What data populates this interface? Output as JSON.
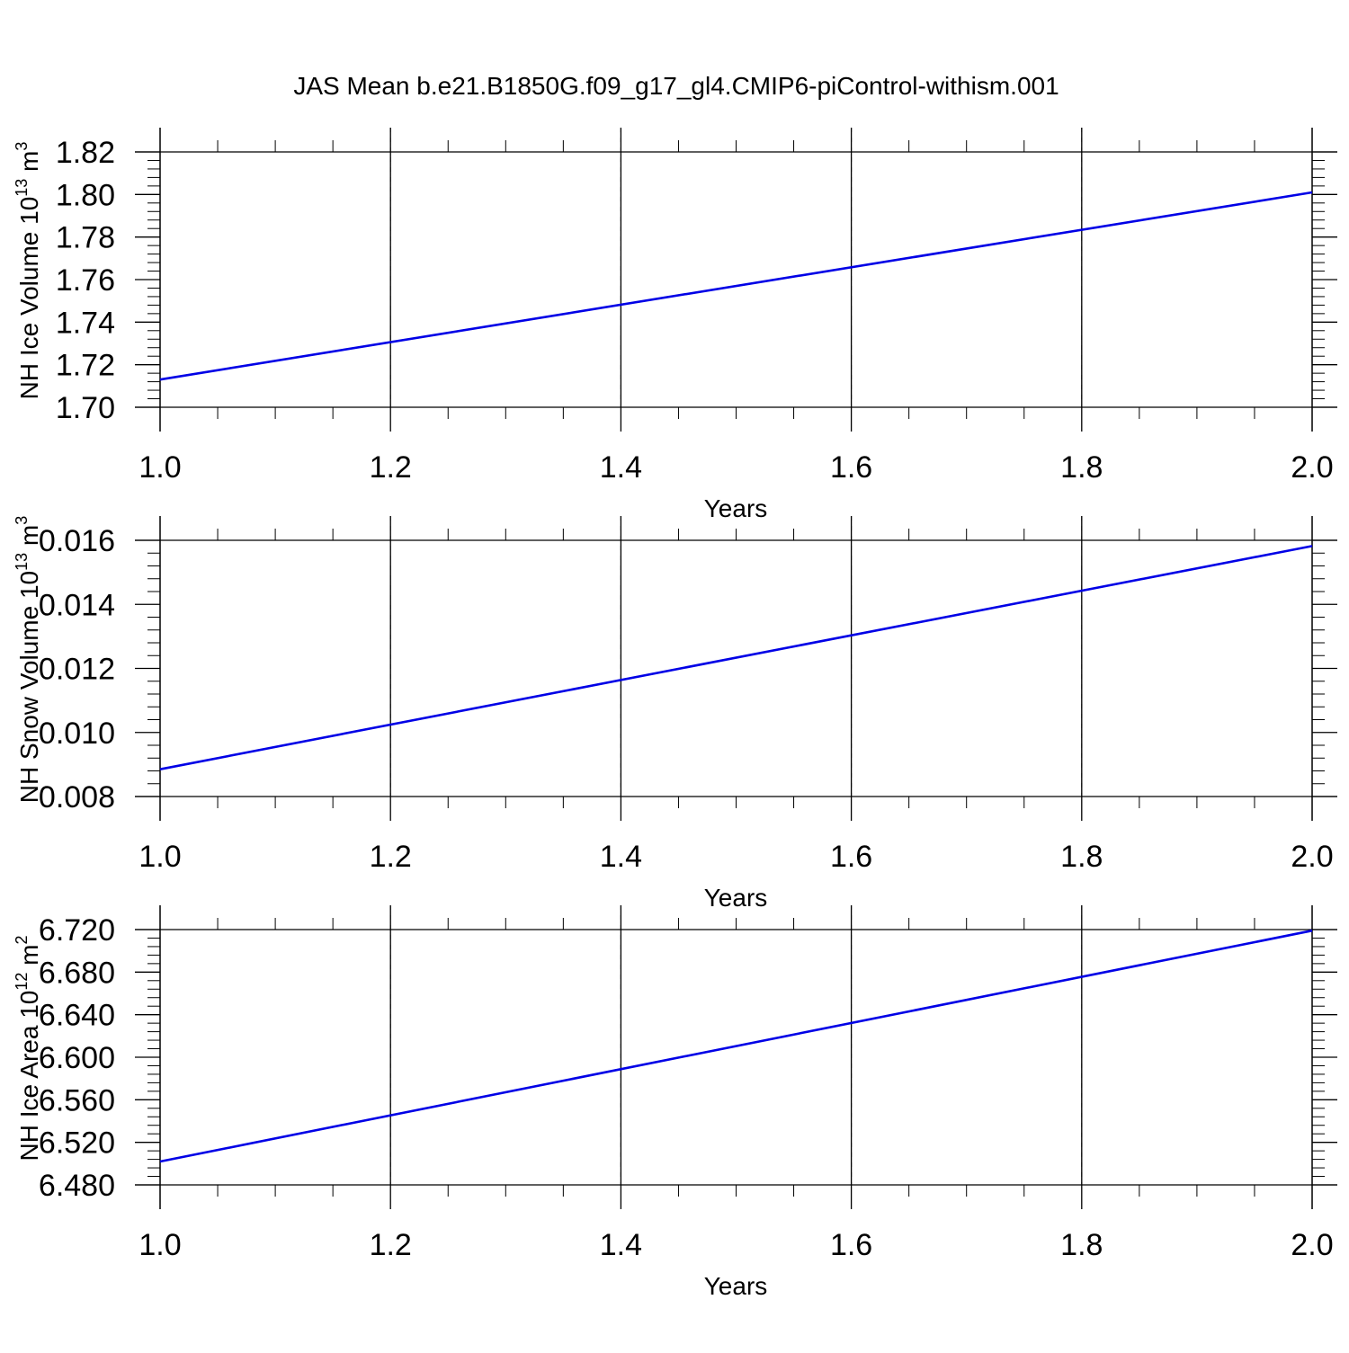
{
  "title": "JAS Mean b.e21.B1850G.f09_g17_gl4.CMIP6-piControl-withism.001",
  "line_color": "#0000e6",
  "chart_data": [
    {
      "type": "line",
      "xlabel": "Years",
      "ylabel": "NH Ice Volume 10",
      "ylabel_exp": "13",
      "ylabel_unit": " m",
      "ylabel_unit_exp": "3",
      "xlim": [
        1.0,
        2.0
      ],
      "ylim": [
        1.7,
        1.82
      ],
      "x_ticks": [
        "1.0",
        "1.2",
        "1.4",
        "1.6",
        "1.8",
        "2.0"
      ],
      "y_ticks": [
        "1.70",
        "1.72",
        "1.74",
        "1.76",
        "1.78",
        "1.80",
        "1.82"
      ],
      "grid": "vertical dashed at major x ticks",
      "series": [
        {
          "x": [
            1.0,
            2.0
          ],
          "y": [
            1.713,
            1.801
          ]
        }
      ]
    },
    {
      "type": "line",
      "xlabel": "Years",
      "ylabel": "NH Snow Volume 10",
      "ylabel_exp": "13",
      "ylabel_unit": " m",
      "ylabel_unit_exp": "3",
      "xlim": [
        1.0,
        2.0
      ],
      "ylim": [
        0.008,
        0.016
      ],
      "x_ticks": [
        "1.0",
        "1.2",
        "1.4",
        "1.6",
        "1.8",
        "2.0"
      ],
      "y_ticks": [
        "0.008",
        "0.010",
        "0.012",
        "0.014",
        "0.016"
      ],
      "grid": "vertical dashed at major x ticks",
      "series": [
        {
          "x": [
            1.0,
            2.0
          ],
          "y": [
            0.00885,
            0.01582
          ]
        }
      ]
    },
    {
      "type": "line",
      "xlabel": "Years",
      "ylabel": "NH Ice Area 10",
      "ylabel_exp": "12",
      "ylabel_unit": " m",
      "ylabel_unit_exp": "2",
      "xlim": [
        1.0,
        2.0
      ],
      "ylim": [
        6.48,
        6.72
      ],
      "x_ticks": [
        "1.0",
        "1.2",
        "1.4",
        "1.6",
        "1.8",
        "2.0"
      ],
      "y_ticks": [
        "6.480",
        "6.520",
        "6.560",
        "6.600",
        "6.640",
        "6.680",
        "6.720"
      ],
      "grid": "vertical dashed at major x ticks",
      "series": [
        {
          "x": [
            1.0,
            2.0
          ],
          "y": [
            6.502,
            6.719
          ]
        }
      ]
    }
  ]
}
